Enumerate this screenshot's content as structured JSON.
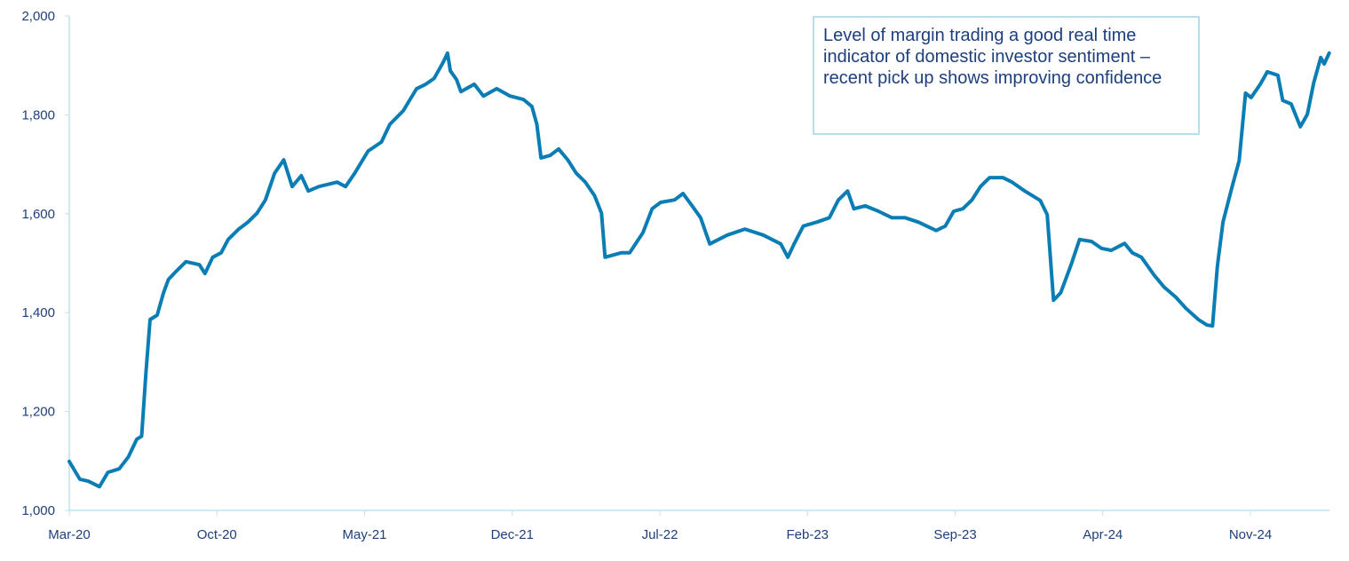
{
  "chart_data": {
    "type": "line",
    "title": "",
    "xlabel": "",
    "ylabel": "",
    "ylim": [
      1000,
      2000
    ],
    "yticks": [
      "1,000",
      "1,200",
      "1,400",
      "1,600",
      "1,800",
      "2,000"
    ],
    "ytick_values": [
      1000,
      1200,
      1400,
      1600,
      1800,
      2000
    ],
    "xlim": [
      "2020-03-01",
      "2025-02-28"
    ],
    "xticks": [
      "Mar-20",
      "Oct-20",
      "May-21",
      "Dec-21",
      "Jul-22",
      "Feb-23",
      "Sep-23",
      "Apr-24",
      "Nov-24"
    ],
    "xtick_dates": [
      "2020-03-01",
      "2020-10-01",
      "2021-05-01",
      "2021-12-01",
      "2022-07-01",
      "2023-02-01",
      "2023-09-01",
      "2024-04-01",
      "2024-11-01"
    ],
    "grid": false,
    "line_color": "#0a7db4",
    "axis_color": "#bfe0ee",
    "text_color": "#1d3f7d",
    "annotation": "Level of margin trading a good real time indicator of domestic investor sentiment – recent pick up shows improving confidence",
    "series": [
      {
        "points": [
          [
            "2020-03-01",
            1099
          ],
          [
            "2020-03-16",
            1063
          ],
          [
            "2020-03-28",
            1059
          ],
          [
            "2020-04-14",
            1048
          ],
          [
            "2020-04-26",
            1077
          ],
          [
            "2020-05-12",
            1084
          ],
          [
            "2020-05-25",
            1108
          ],
          [
            "2020-06-07",
            1144
          ],
          [
            "2020-06-14",
            1150
          ],
          [
            "2020-06-20",
            1278
          ],
          [
            "2020-06-26",
            1386
          ],
          [
            "2020-07-06",
            1395
          ],
          [
            "2020-07-15",
            1440
          ],
          [
            "2020-07-22",
            1467
          ],
          [
            "2020-08-04",
            1485
          ],
          [
            "2020-08-17",
            1503
          ],
          [
            "2020-09-06",
            1497
          ],
          [
            "2020-09-14",
            1479
          ],
          [
            "2020-09-25",
            1512
          ],
          [
            "2020-10-07",
            1521
          ],
          [
            "2020-10-17",
            1548
          ],
          [
            "2020-11-02",
            1569
          ],
          [
            "2020-11-15",
            1583
          ],
          [
            "2020-11-28",
            1601
          ],
          [
            "2020-12-10",
            1628
          ],
          [
            "2020-12-23",
            1682
          ],
          [
            "2021-01-06",
            1709
          ],
          [
            "2021-01-18",
            1655
          ],
          [
            "2021-02-01",
            1677
          ],
          [
            "2021-02-11",
            1646
          ],
          [
            "2021-02-26",
            1655
          ],
          [
            "2021-03-22",
            1664
          ],
          [
            "2021-04-04",
            1655
          ],
          [
            "2021-04-17",
            1682
          ],
          [
            "2021-05-06",
            1727
          ],
          [
            "2021-05-25",
            1745
          ],
          [
            "2021-06-07",
            1781
          ],
          [
            "2021-06-26",
            1808
          ],
          [
            "2021-07-15",
            1853
          ],
          [
            "2021-07-28",
            1862
          ],
          [
            "2021-08-10",
            1874
          ],
          [
            "2021-08-23",
            1907
          ],
          [
            "2021-08-29",
            1925
          ],
          [
            "2021-09-03",
            1889
          ],
          [
            "2021-09-12",
            1871
          ],
          [
            "2021-09-18",
            1847
          ],
          [
            "2021-10-07",
            1862
          ],
          [
            "2021-10-20",
            1838
          ],
          [
            "2021-11-09",
            1853
          ],
          [
            "2021-11-28",
            1838
          ],
          [
            "2021-12-17",
            1831
          ],
          [
            "2021-12-29",
            1817
          ],
          [
            "2022-01-06",
            1781
          ],
          [
            "2022-01-12",
            1713
          ],
          [
            "2022-01-25",
            1718
          ],
          [
            "2022-02-07",
            1731
          ],
          [
            "2022-02-20",
            1709
          ],
          [
            "2022-03-02",
            1682
          ],
          [
            "2022-03-15",
            1664
          ],
          [
            "2022-03-28",
            1637
          ],
          [
            "2022-04-08",
            1601
          ],
          [
            "2022-04-13",
            1512
          ],
          [
            "2022-05-06",
            1521
          ],
          [
            "2022-05-18",
            1521
          ],
          [
            "2022-06-07",
            1562
          ],
          [
            "2022-06-20",
            1610
          ],
          [
            "2022-07-02",
            1623
          ],
          [
            "2022-07-22",
            1628
          ],
          [
            "2022-08-04",
            1641
          ],
          [
            "2022-08-17",
            1616
          ],
          [
            "2022-08-29",
            1592
          ],
          [
            "2022-09-12",
            1539
          ],
          [
            "2022-10-07",
            1557
          ],
          [
            "2022-11-02",
            1569
          ],
          [
            "2022-11-28",
            1557
          ],
          [
            "2022-12-23",
            1539
          ],
          [
            "2023-01-03",
            1512
          ],
          [
            "2023-01-12",
            1539
          ],
          [
            "2023-01-25",
            1575
          ],
          [
            "2023-02-14",
            1583
          ],
          [
            "2023-03-02",
            1592
          ],
          [
            "2023-03-15",
            1628
          ],
          [
            "2023-03-28",
            1646
          ],
          [
            "2023-04-07",
            1610
          ],
          [
            "2023-04-23",
            1616
          ],
          [
            "2023-05-12",
            1605
          ],
          [
            "2023-06-01",
            1592
          ],
          [
            "2023-06-20",
            1592
          ],
          [
            "2023-07-09",
            1583
          ],
          [
            "2023-08-04",
            1566
          ],
          [
            "2023-08-17",
            1575
          ],
          [
            "2023-08-29",
            1605
          ],
          [
            "2023-09-12",
            1610
          ],
          [
            "2023-09-25",
            1628
          ],
          [
            "2023-10-07",
            1655
          ],
          [
            "2023-10-20",
            1673
          ],
          [
            "2023-11-09",
            1673
          ],
          [
            "2023-11-22",
            1664
          ],
          [
            "2023-12-10",
            1646
          ],
          [
            "2024-01-02",
            1627
          ],
          [
            "2024-01-12",
            1598
          ],
          [
            "2024-01-21",
            1425
          ],
          [
            "2024-02-01",
            1440
          ],
          [
            "2024-02-16",
            1497
          ],
          [
            "2024-02-28",
            1548
          ],
          [
            "2024-03-15",
            1544
          ],
          [
            "2024-03-29",
            1530
          ],
          [
            "2024-04-13",
            1526
          ],
          [
            "2024-05-02",
            1540
          ],
          [
            "2024-05-13",
            1521
          ],
          [
            "2024-05-26",
            1512
          ],
          [
            "2024-06-14",
            1476
          ],
          [
            "2024-06-28",
            1452
          ],
          [
            "2024-07-15",
            1431
          ],
          [
            "2024-07-29",
            1409
          ],
          [
            "2024-08-17",
            1386
          ],
          [
            "2024-08-29",
            1375
          ],
          [
            "2024-09-07",
            1373
          ],
          [
            "2024-09-14",
            1494
          ],
          [
            "2024-09-22",
            1583
          ],
          [
            "2024-10-05",
            1655
          ],
          [
            "2024-10-15",
            1707
          ],
          [
            "2024-10-24",
            1844
          ],
          [
            "2024-11-02",
            1835
          ],
          [
            "2024-11-15",
            1862
          ],
          [
            "2024-11-25",
            1887
          ],
          [
            "2024-12-10",
            1880
          ],
          [
            "2024-12-17",
            1829
          ],
          [
            "2024-12-29",
            1822
          ],
          [
            "2025-01-12",
            1776
          ],
          [
            "2025-01-22",
            1801
          ],
          [
            "2025-02-01",
            1865
          ],
          [
            "2025-02-11",
            1916
          ],
          [
            "2025-02-16",
            1903
          ],
          [
            "2025-02-23",
            1925
          ]
        ]
      }
    ]
  }
}
